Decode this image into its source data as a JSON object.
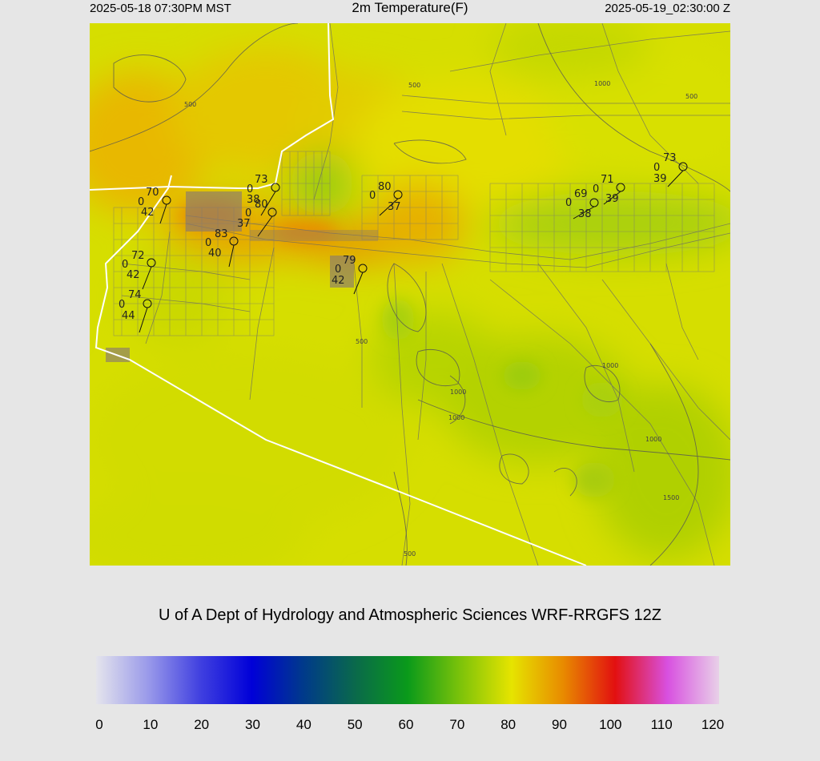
{
  "header": {
    "local_time": "2025-05-18 07:30PM MST",
    "title": "2m Temperature(F)",
    "utc_time": "2025-05-19_02:30:00 Z"
  },
  "credit": "U of A Dept of Hydrology and Atmospheric Sciences WRF-RRGFS 12Z",
  "colorbar": {
    "ticks": [
      "0",
      "10",
      "20",
      "30",
      "40",
      "50",
      "60",
      "70",
      "80",
      "90",
      "100",
      "110",
      "120"
    ],
    "colors": [
      "#e4e4ec",
      "#9a9aea",
      "#4040e0",
      "#0000d8",
      "#003a8a",
      "#0a6a4a",
      "#0a9a1a",
      "#7ac20a",
      "#e6e400",
      "#e88a00",
      "#e21010",
      "#d850e0",
      "#e8d0e8"
    ]
  },
  "map": {
    "contour_labels": [
      "500",
      "500",
      "1000",
      "500",
      "500",
      "1000",
      "1000",
      "1000",
      "1000",
      "1500",
      "500"
    ],
    "stations": [
      {
        "temp": "70",
        "wind": "0",
        "dew": "42"
      },
      {
        "temp": "73",
        "wind": "0",
        "dew": "38"
      },
      {
        "temp": "80",
        "wind": "0",
        "dew": "37"
      },
      {
        "temp": "83",
        "wind": "0",
        "dew": "40"
      },
      {
        "temp": "72",
        "wind": "0",
        "dew": "42"
      },
      {
        "temp": "74",
        "wind": "0",
        "dew": "44"
      },
      {
        "temp": "79",
        "wind": "0",
        "dew": "42"
      },
      {
        "temp": "80",
        "wind": "0",
        "dew": "37"
      },
      {
        "temp": "69",
        "wind": "0",
        "dew": "38"
      },
      {
        "temp": "71",
        "wind": "0",
        "dew": "39"
      },
      {
        "temp": "73",
        "wind": "0",
        "dew": "39"
      }
    ]
  }
}
